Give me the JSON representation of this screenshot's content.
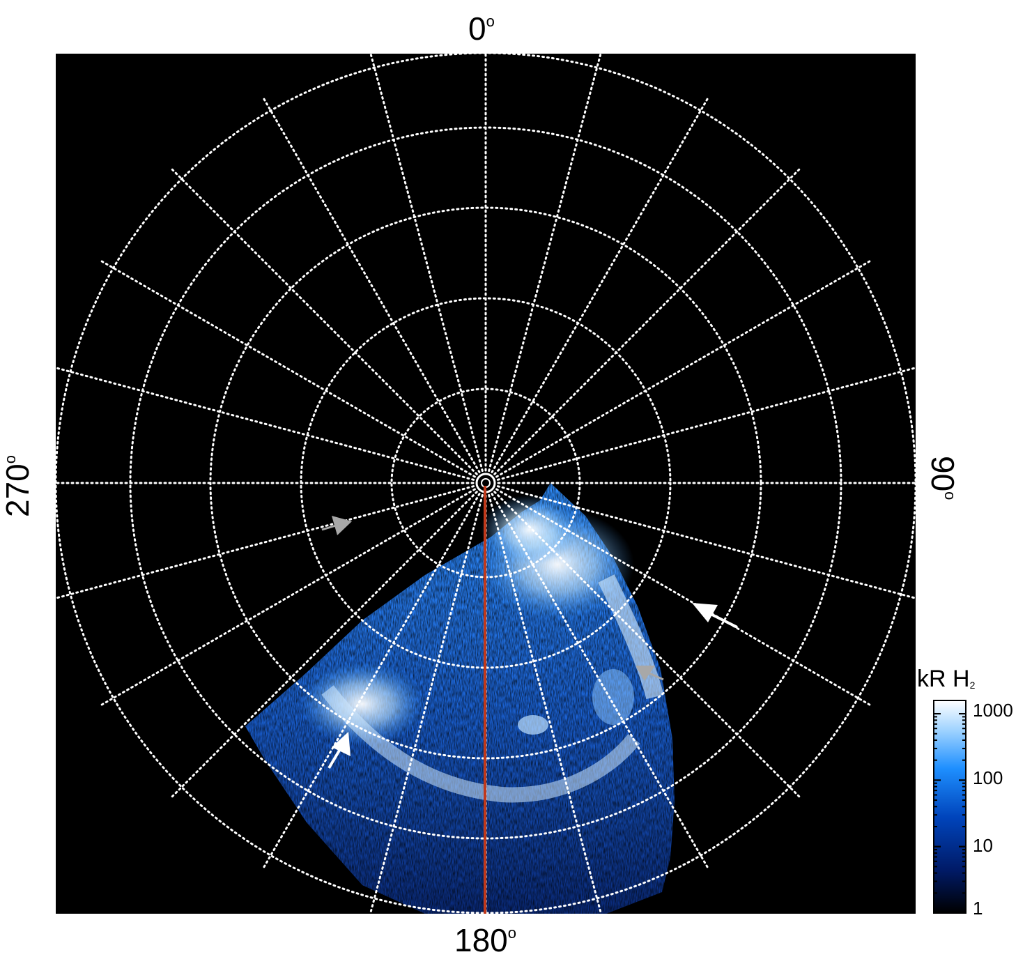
{
  "labels": {
    "top": "0",
    "right": "90",
    "bottom": "180",
    "left": "270",
    "degree_mark": "o"
  },
  "colorbar": {
    "title_main": "kR H",
    "title_sub": "2",
    "ticks": [
      "1000",
      "100",
      "10",
      "1"
    ],
    "colors": [
      "#000000",
      "#001a66",
      "#0044bb",
      "#1e8fff",
      "#9fd3ff",
      "#ffffff"
    ]
  },
  "colors": {
    "background": "#000000",
    "grid": "#ffffff",
    "meridian": "#c0391b",
    "arrow_white": "#ffffff",
    "arrow_gray": "#a8a8a8"
  }
}
